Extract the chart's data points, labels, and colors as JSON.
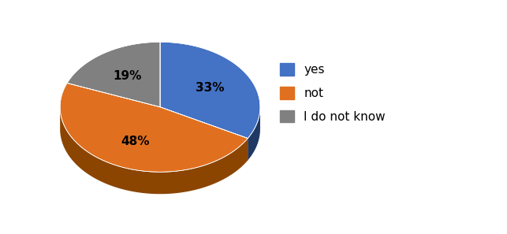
{
  "labels": [
    "yes",
    "not",
    "I do not know"
  ],
  "values": [
    33,
    48,
    19
  ],
  "colors": [
    "#4472C4",
    "#E07020",
    "#808080"
  ],
  "dark_colors": [
    "#1F3864",
    "#7B3F00",
    "#404040"
  ],
  "side_colors": [
    "#1F3864",
    "#8B4500",
    "#505050"
  ],
  "pct_labels": [
    "33%",
    "48%",
    "19%"
  ],
  "legend_labels": [
    "yes",
    "not",
    "I do not know"
  ],
  "startangle": 90,
  "figsize": [
    6.43,
    2.97
  ],
  "dpi": 100
}
